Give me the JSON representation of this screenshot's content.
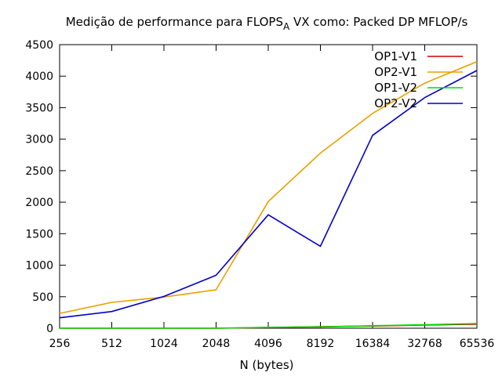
{
  "chart_data": {
    "type": "line",
    "title_main": "Medição de performance para FLOPS",
    "title_sub": "A",
    "title_rest": " VX como: Packed DP MFLOP/s",
    "xlabel": "N (bytes)",
    "ylabel": "",
    "x_categories": [
      "256",
      "512",
      "1024",
      "2048",
      "4096",
      "8192",
      "16384",
      "32768",
      "65536"
    ],
    "y_ticks": [
      0,
      500,
      1000,
      1500,
      2000,
      2500,
      3000,
      3500,
      4000,
      4500
    ],
    "ylim": [
      0,
      4500
    ],
    "grid": false,
    "legend_position": "top-right",
    "series": [
      {
        "name": "OP1-V1",
        "color": "#cc0000",
        "values": [
          0,
          0,
          0,
          0,
          10,
          25,
          35,
          50,
          65
        ]
      },
      {
        "name": "OP2-V1",
        "color": "#e8a000",
        "values": [
          235,
          410,
          495,
          610,
          2010,
          2780,
          3410,
          3890,
          4230
        ]
      },
      {
        "name": "OP1-V2",
        "color": "#00dd00",
        "values": [
          0,
          0,
          0,
          0,
          15,
          20,
          40,
          55,
          75
        ]
      },
      {
        "name": "OP2-V2",
        "color": "#0000cc",
        "values": [
          165,
          265,
          505,
          840,
          1800,
          1300,
          3060,
          3660,
          4090
        ]
      }
    ]
  }
}
